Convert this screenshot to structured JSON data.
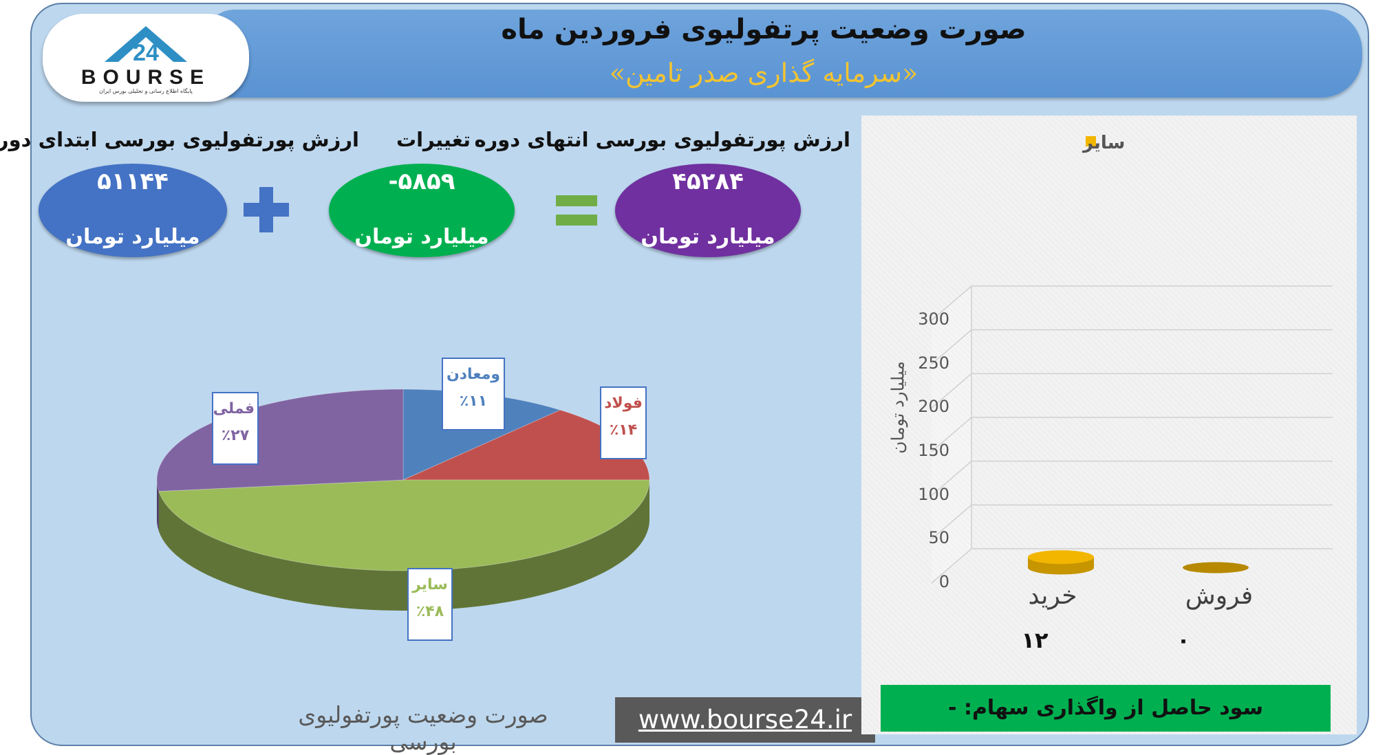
{
  "header": {
    "title": "صورت وضعیت پرتفولیوی فروردین ماه",
    "subtitle": "«سرمایه گذاری صدر تامین»"
  },
  "logo": {
    "text": "BOURSE",
    "number": "24",
    "tagline": "پایگاه اطلاع رسانی و تحلیلی بورس ایران"
  },
  "summary": {
    "start": {
      "label": "ارزش پورتفولیوی بورسی ابتدای دوره",
      "value": "۵۱۱۴۴",
      "unit": "میلیارد تومان",
      "color": "#4472c4"
    },
    "change": {
      "label": "تغییرات",
      "value": "-۵۸۵۹",
      "unit": "میلیارد تومان",
      "color": "#00b050"
    },
    "end": {
      "label": "ارزش پورتفولیوی بورسی انتهای دوره",
      "value": "۴۵۲۸۴",
      "unit": "میلیارد تومان",
      "color": "#7030a0"
    },
    "plus_sign": "+",
    "equals_sign": "=",
    "plus_color": "#4472c4",
    "equals_color": "#70ad47"
  },
  "pie_caption": "صورت وضعیت پورتفولیوی بورسی",
  "website": "www.bourse24.ir",
  "profit_text": "سود حاصل از واگذاری سهام: -",
  "chart_data": [
    {
      "type": "pie",
      "title": "",
      "slices": [
        {
          "name": "ومعادن",
          "value": 11,
          "label": "٪۱۱",
          "color": "#4f81bd"
        },
        {
          "name": "فولاد",
          "value": 14,
          "label": "٪۱۴",
          "color": "#c0504d"
        },
        {
          "name": "سایر",
          "value": 48,
          "label": "٪۴۸",
          "color": "#9bbb59"
        },
        {
          "name": "فملی",
          "value": 27,
          "label": "٪۲۷",
          "color": "#8064a2"
        }
      ]
    },
    {
      "type": "bar",
      "title": "",
      "categories": [
        "خرید",
        "فروش"
      ],
      "series": [
        {
          "name": "سایر",
          "values": [
            12,
            0
          ],
          "labels": [
            "۱۲",
            "۰"
          ],
          "color": "#f2b600"
        }
      ],
      "ylabel": "میلیارد تومان",
      "ylim": [
        0,
        300
      ],
      "yticks": [
        "0",
        "50",
        "100",
        "150",
        "200",
        "250",
        "300"
      ],
      "grid": true,
      "legend": "top"
    }
  ]
}
